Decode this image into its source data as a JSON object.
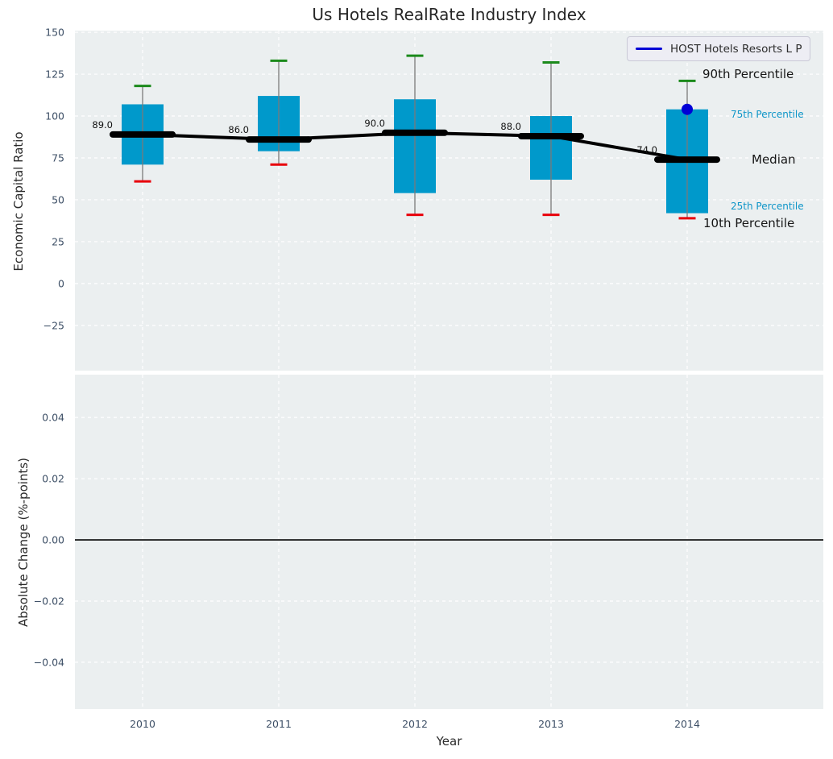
{
  "title": "Us Hotels RealRate Industry Index",
  "legend": {
    "label": "HOST Hotels Resorts L P"
  },
  "annotations": {
    "p90": "90th Percentile",
    "p75": "75th Percentile",
    "median": "Median",
    "p25": "25th Percentile",
    "p10": "10th Percentile"
  },
  "colors": {
    "axes_bg": "#ebeff0",
    "grid": "#ffffff",
    "box_fill": "#0099cb",
    "whisker": "#7a7a7a",
    "cap_high": "#1b8a1b",
    "cap_low": "#e8000b",
    "median_line": "#000000",
    "company": "#0000d6",
    "tick_text": "#3d4f66",
    "percentile_text_accent": "#0d95c8",
    "zero_line": "#000000"
  },
  "chart_data": [
    {
      "type": "boxplot",
      "title": "Us Hotels RealRate Industry Index",
      "xlabel": "Year",
      "ylabel": "Economic Capital Ratio",
      "x": [
        2010,
        2011,
        2012,
        2013,
        2014
      ],
      "xtick_labels": [
        "2010",
        "2011",
        "2012",
        "2013",
        "2014"
      ],
      "ylim": [
        -52,
        151
      ],
      "yticks": [
        {
          "v": 150,
          "label": "150"
        },
        {
          "v": 125,
          "label": "125"
        },
        {
          "v": 100,
          "label": "100"
        },
        {
          "v": 75,
          "label": "75"
        },
        {
          "v": 50,
          "label": "50"
        },
        {
          "v": 25,
          "label": "25"
        },
        {
          "v": 0,
          "label": "0"
        },
        {
          "v": -25,
          "label": "−25"
        }
      ],
      "grid": true,
      "legend_position": "upper right",
      "series": {
        "p90": [
          118,
          133,
          136,
          132,
          121
        ],
        "p75": [
          107,
          112,
          110,
          100,
          104
        ],
        "median": [
          89,
          86,
          90,
          88,
          74
        ],
        "p25": [
          71,
          79,
          54,
          62,
          42
        ],
        "p10": [
          61,
          71,
          41,
          41,
          39
        ]
      },
      "median_labels": [
        "89.0",
        "86.0",
        "90.0",
        "88.0",
        "74.0"
      ],
      "company_point": {
        "name": "HOST Hotels Resorts L P",
        "x": 2014,
        "y": 104
      }
    },
    {
      "type": "empty",
      "ylabel": "Absolute Change (%-points)",
      "ylim": [
        -0.0553,
        0.054
      ],
      "yticks": [
        {
          "v": 0.04,
          "label": "0.04"
        },
        {
          "v": 0.02,
          "label": "0.02"
        },
        {
          "v": 0.0,
          "label": "0.00"
        },
        {
          "v": -0.02,
          "label": "−0.02"
        },
        {
          "v": -0.04,
          "label": "−0.04"
        }
      ],
      "grid": true,
      "zero_line": 0.0
    }
  ]
}
